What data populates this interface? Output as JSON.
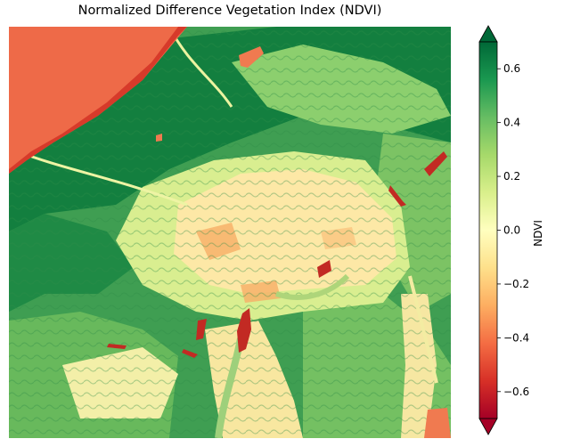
{
  "title": "Normalized Difference Vegetation Index (NDVI)",
  "colorbar": {
    "label": "NDVI",
    "colormap": "RdYlGn",
    "extend": "both",
    "vmin": -0.7,
    "vmax": 0.7,
    "ticks": [
      {
        "value": 0.6,
        "label": "0.6"
      },
      {
        "value": 0.4,
        "label": "0.4"
      },
      {
        "value": 0.2,
        "label": "0.2"
      },
      {
        "value": 0.0,
        "label": "0.0"
      },
      {
        "value": -0.2,
        "label": "−0.2"
      },
      {
        "value": -0.4,
        "label": "−0.4"
      },
      {
        "value": -0.6,
        "label": "−0.6"
      }
    ],
    "colors": [
      "#a50026",
      "#d73027",
      "#f46d43",
      "#fdae61",
      "#fee08b",
      "#ffffbf",
      "#d9ef8b",
      "#a6d96a",
      "#66bd63",
      "#1a9850",
      "#006837"
    ]
  },
  "map": {
    "colors": {
      "water": "#d73a2a",
      "water_light": "#ee6a48",
      "bare": "#fbe3a0",
      "sparse": "#d8ee8c",
      "vegetation": "#4fae5a",
      "dense": "#107c3e"
    }
  }
}
